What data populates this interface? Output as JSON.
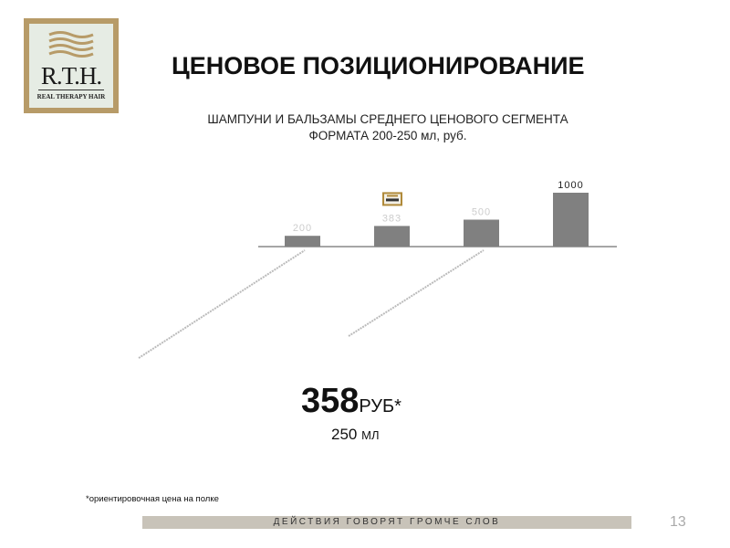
{
  "logo": {
    "mark": "R.T.H.",
    "subtitle": "REAL THERAPY HAIR",
    "color": "#b79b68"
  },
  "title": "ЦЕНОВОЕ ПОЗИЦИОНИРОВАНИЕ",
  "subtitle_line1": "ШАМПУНИ И БАЛЬЗАМЫ СРЕДНЕГО ЦЕНОВОГО СЕГМЕНТА",
  "subtitle_line2": "ФОРМАТА 200-250 мл, руб.",
  "chart_data": {
    "type": "bar",
    "categories": [
      "",
      "",
      "",
      ""
    ],
    "values": [
      200,
      383,
      500,
      1000
    ],
    "data_labels": [
      "200",
      "383",
      "500",
      "1000"
    ],
    "highlight_index": 1,
    "highlight_marker": "R.T.H. logo",
    "bar_color": "#808080",
    "ylim": [
      0,
      1000
    ],
    "grid": false,
    "legend": "none"
  },
  "price": {
    "value": "358",
    "unit": "РУБ*"
  },
  "volume": {
    "value": "250",
    "unit": "МЛ"
  },
  "footnote": "*ориентировочная цена на полке",
  "footer": {
    "slogan": "ДЕЙСТВИЯ ГОВОРЯТ  ГРОМЧЕ СЛОВ",
    "page": "13"
  }
}
